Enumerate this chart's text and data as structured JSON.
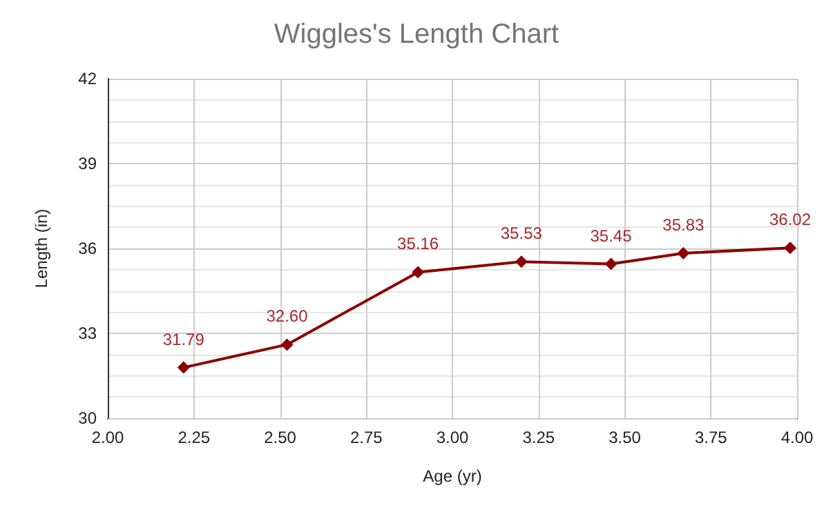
{
  "chart_data": {
    "type": "line",
    "title": "Wiggles's Length Chart",
    "xlabel": "Age (yr)",
    "ylabel": "Length (in)",
    "x": [
      2.22,
      2.52,
      2.9,
      3.2,
      3.46,
      3.67,
      3.98
    ],
    "series": [
      {
        "color": "#8b0000",
        "values": [
          31.79,
          32.6,
          35.16,
          35.53,
          35.45,
          35.83,
          36.02
        ],
        "value_labels": [
          "31.79",
          "32.60",
          "35.16",
          "35.53",
          "35.45",
          "35.83",
          "36.02"
        ]
      }
    ],
    "xlim": [
      2,
      4
    ],
    "xticks": [
      {
        "value": 2,
        "label": "2.00"
      },
      {
        "value": 2.25,
        "label": "2.25"
      },
      {
        "value": 2.5,
        "label": "2.50"
      },
      {
        "value": 2.75,
        "label": "2.75"
      },
      {
        "value": 3,
        "label": "3.00"
      },
      {
        "value": 3.25,
        "label": "3.25"
      },
      {
        "value": 3.5,
        "label": "3.50"
      },
      {
        "value": 3.75,
        "label": "3.75"
      },
      {
        "value": 4,
        "label": "4.00"
      }
    ],
    "ylim": [
      30,
      42
    ],
    "yticks": [
      30,
      33,
      36,
      39,
      42
    ],
    "grid": true,
    "marker": "diamond",
    "line_style": "solid"
  }
}
